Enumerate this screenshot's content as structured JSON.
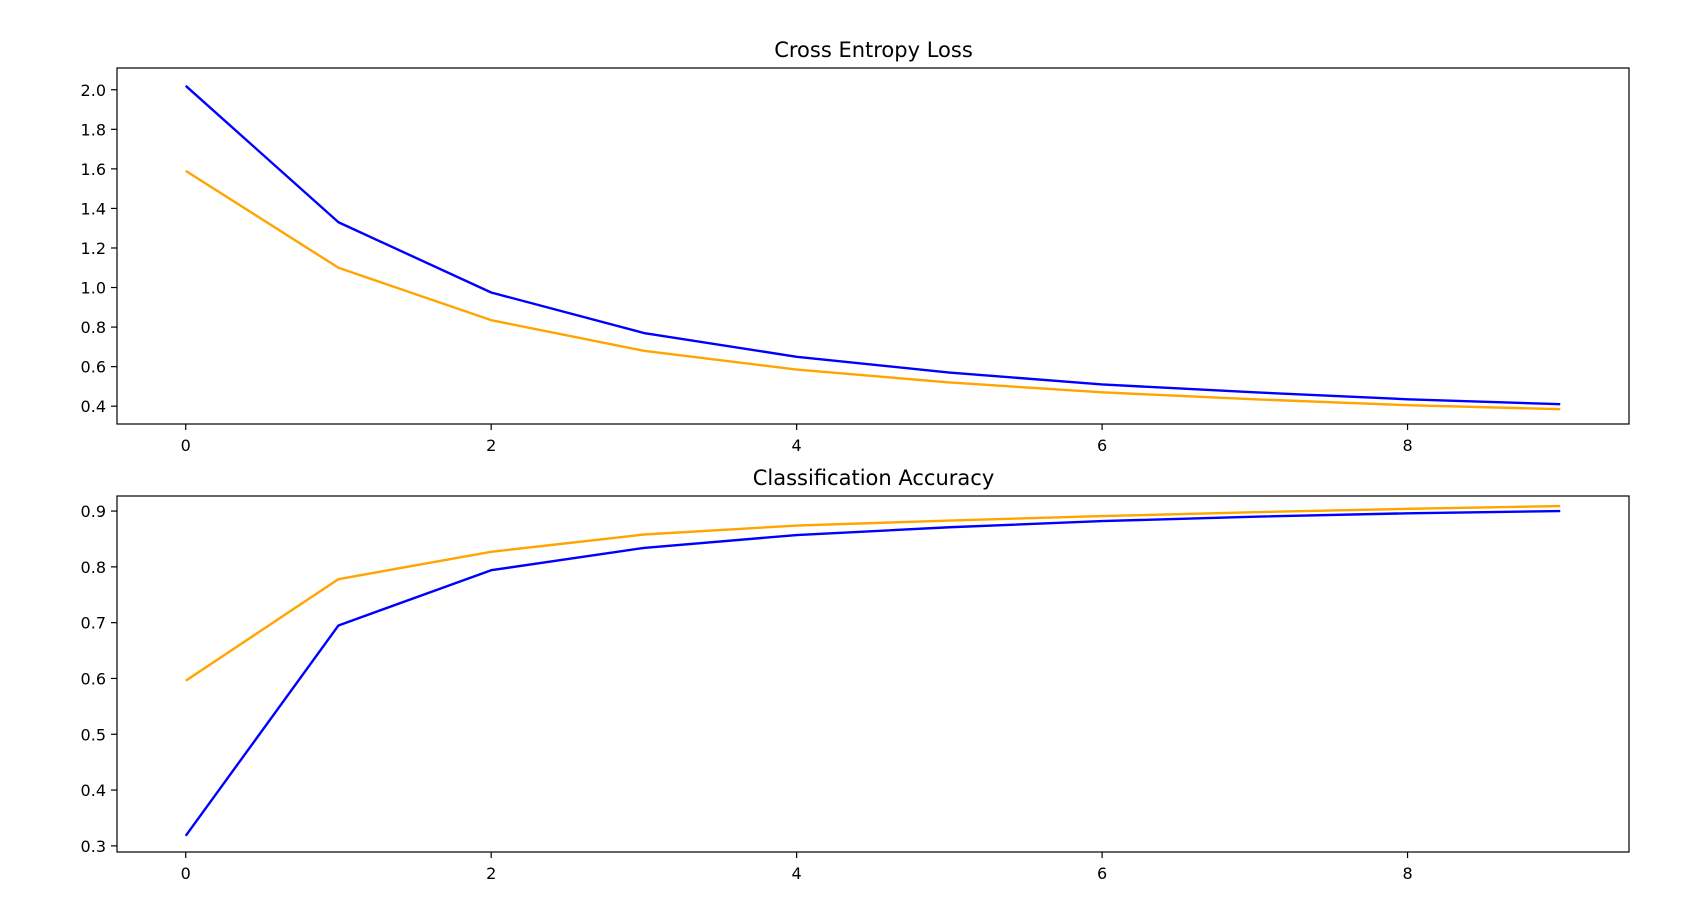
{
  "chart_data": [
    {
      "type": "line",
      "title": "Cross Entropy Loss",
      "xlabel": "",
      "ylabel": "",
      "x": [
        0,
        1,
        2,
        3,
        4,
        5,
        6,
        7,
        8,
        9
      ],
      "xlim": [
        -0.45,
        9.45
      ],
      "ylim": [
        0.31,
        2.11
      ],
      "xticks": [
        0,
        2,
        4,
        6,
        8
      ],
      "xtick_labels": [
        "0",
        "2",
        "4",
        "6",
        "8"
      ],
      "yticks": [
        0.4,
        0.6,
        0.8,
        1.0,
        1.2,
        1.4,
        1.6,
        1.8,
        2.0
      ],
      "ytick_labels": [
        "0.4",
        "0.6",
        "0.8",
        "1.0",
        "1.2",
        "1.4",
        "1.6",
        "1.8",
        "2.0"
      ],
      "grid": false,
      "series": [
        {
          "color": "#0000ff",
          "values": [
            2.02,
            1.33,
            0.975,
            0.77,
            0.65,
            0.57,
            0.51,
            0.47,
            0.435,
            0.41
          ]
        },
        {
          "color": "#ffa500",
          "values": [
            1.59,
            1.1,
            0.835,
            0.68,
            0.585,
            0.52,
            0.47,
            0.435,
            0.405,
            0.385
          ]
        }
      ]
    },
    {
      "type": "line",
      "title": "Classification Accuracy",
      "xlabel": "",
      "ylabel": "",
      "x": [
        0,
        1,
        2,
        3,
        4,
        5,
        6,
        7,
        8,
        9
      ],
      "xlim": [
        -0.45,
        9.45
      ],
      "ylim": [
        0.289,
        0.927
      ],
      "xticks": [
        0,
        2,
        4,
        6,
        8
      ],
      "xtick_labels": [
        "0",
        "2",
        "4",
        "6",
        "8"
      ],
      "yticks": [
        0.3,
        0.4,
        0.5,
        0.6,
        0.7,
        0.8,
        0.9
      ],
      "ytick_labels": [
        "0.3",
        "0.4",
        "0.5",
        "0.6",
        "0.7",
        "0.8",
        "0.9"
      ],
      "grid": false,
      "series": [
        {
          "color": "#0000ff",
          "values": [
            0.318,
            0.695,
            0.794,
            0.834,
            0.857,
            0.871,
            0.882,
            0.89,
            0.896,
            0.9
          ]
        },
        {
          "color": "#ffa500",
          "values": [
            0.596,
            0.778,
            0.827,
            0.858,
            0.874,
            0.883,
            0.891,
            0.898,
            0.904,
            0.909
          ]
        }
      ]
    }
  ]
}
